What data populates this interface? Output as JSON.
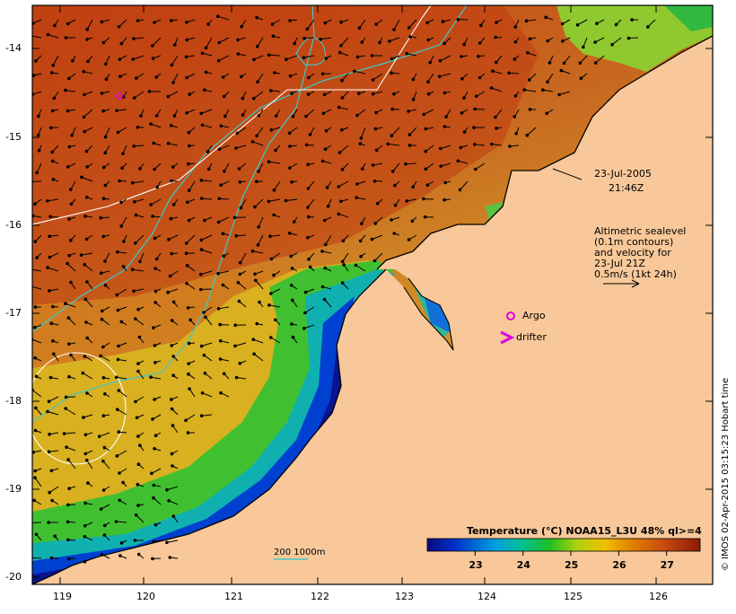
{
  "map": {
    "lon_labels": [
      "119",
      "120",
      "121",
      "122",
      "123",
      "124",
      "125",
      "126"
    ],
    "lat_labels": [
      "-14",
      "-15",
      "-16",
      "-17",
      "-18",
      "-19",
      "-20"
    ],
    "datetime": {
      "date": "23-Jul-2005",
      "time": "21:46Z"
    },
    "altimetry_note": [
      "Altimetric sealevel",
      "(0.1m contours)",
      "and velocity for",
      "23-Jul 21Z",
      "0.5m/s (1kt 24h)"
    ],
    "legend": {
      "argo": "Argo",
      "drifter": "drifter",
      "depth_contours": "200  1000m"
    },
    "colorbar": {
      "title": "Temperature (°C) NOAA15_L3U 48% ql>=4",
      "ticks": [
        "23",
        "24",
        "25",
        "26",
        "27"
      ],
      "range": [
        22.0,
        27.7
      ]
    },
    "credit": "© IMOS 02-Apr-2015 03:15:23 Hobart time",
    "colors": {
      "land": "#f8c89a",
      "warm": "#c03a10",
      "cool": "#0020a0",
      "bathy": "#40c0c0",
      "argo": "#e000e0"
    }
  }
}
